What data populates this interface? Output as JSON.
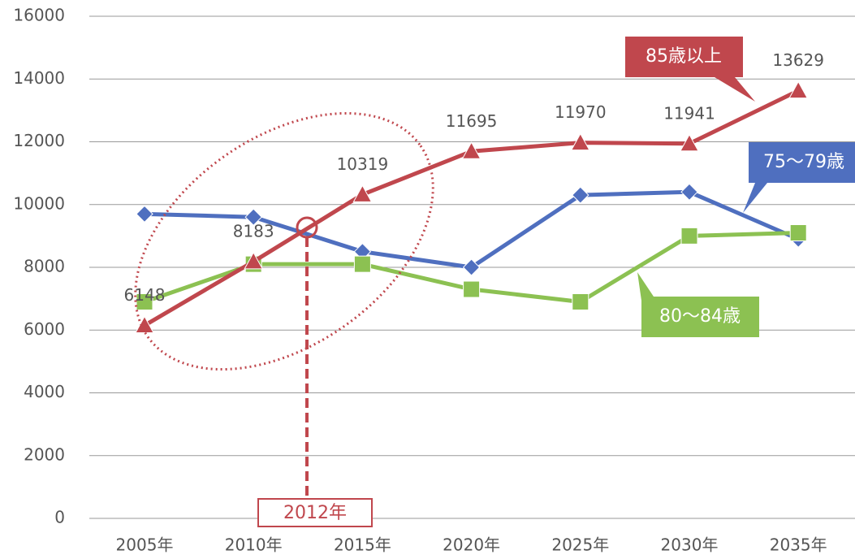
{
  "chart_data": {
    "type": "line",
    "categories": [
      "2005年",
      "2010年",
      "2015年",
      "2020年",
      "2025年",
      "2030年",
      "2035年"
    ],
    "series": [
      {
        "name": "75〜79歳",
        "color": "#4f6fbf",
        "marker": "diamond",
        "values": [
          9700,
          9600,
          8500,
          8000,
          10300,
          10400,
          8900
        ]
      },
      {
        "name": "80〜84歳",
        "color": "#8cc152",
        "marker": "square",
        "values": [
          6900,
          8100,
          8100,
          7300,
          6900,
          9000,
          9100
        ]
      },
      {
        "name": "85歳以上",
        "color": "#c0474d",
        "marker": "triangle",
        "data_labels": true,
        "values": [
          6148,
          8183,
          10319,
          11695,
          11970,
          11941,
          13629
        ]
      }
    ],
    "ylim": [
      0,
      16000
    ],
    "yticks": [
      0,
      2000,
      4000,
      6000,
      8000,
      10000,
      12000,
      14000,
      16000
    ],
    "grid": true,
    "annotation": "2012年"
  }
}
